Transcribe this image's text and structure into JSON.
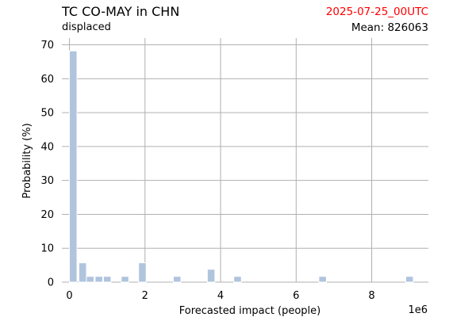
{
  "header": {
    "title": "TC CO-MAY in CHN",
    "subtitle": "displaced",
    "datestamp": "2025-07-25_00UTC",
    "mean_label": "Mean: 826063"
  },
  "colors": {
    "bar": "#b0c4de",
    "grid": "#b0b0b0",
    "datestamp": "#ff0000"
  },
  "chart_data": {
    "type": "bar",
    "title": "TC CO-MAY in CHN",
    "subtitle": "displaced",
    "xlabel": "Forecasted impact (people)",
    "ylabel": "Probability (%)",
    "x_offset_label": "1e6",
    "xlim": [
      -0.2,
      9.5
    ],
    "ylim": [
      0,
      72
    ],
    "x_ticks": [
      0,
      2,
      4,
      6,
      8
    ],
    "y_ticks": [
      0,
      10,
      20,
      30,
      40,
      50,
      60,
      70
    ],
    "grid": true,
    "bar_width": 0.2,
    "bars": [
      {
        "x": 0.1,
        "value": 68.2
      },
      {
        "x": 0.35,
        "value": 5.7
      },
      {
        "x": 0.55,
        "value": 1.7
      },
      {
        "x": 0.78,
        "value": 1.7
      },
      {
        "x": 1.0,
        "value": 1.7
      },
      {
        "x": 1.47,
        "value": 1.7
      },
      {
        "x": 1.93,
        "value": 5.7
      },
      {
        "x": 2.85,
        "value": 1.7
      },
      {
        "x": 3.75,
        "value": 3.8
      },
      {
        "x": 4.45,
        "value": 1.7
      },
      {
        "x": 6.7,
        "value": 1.7
      },
      {
        "x": 9.0,
        "value": 1.7
      }
    ]
  }
}
